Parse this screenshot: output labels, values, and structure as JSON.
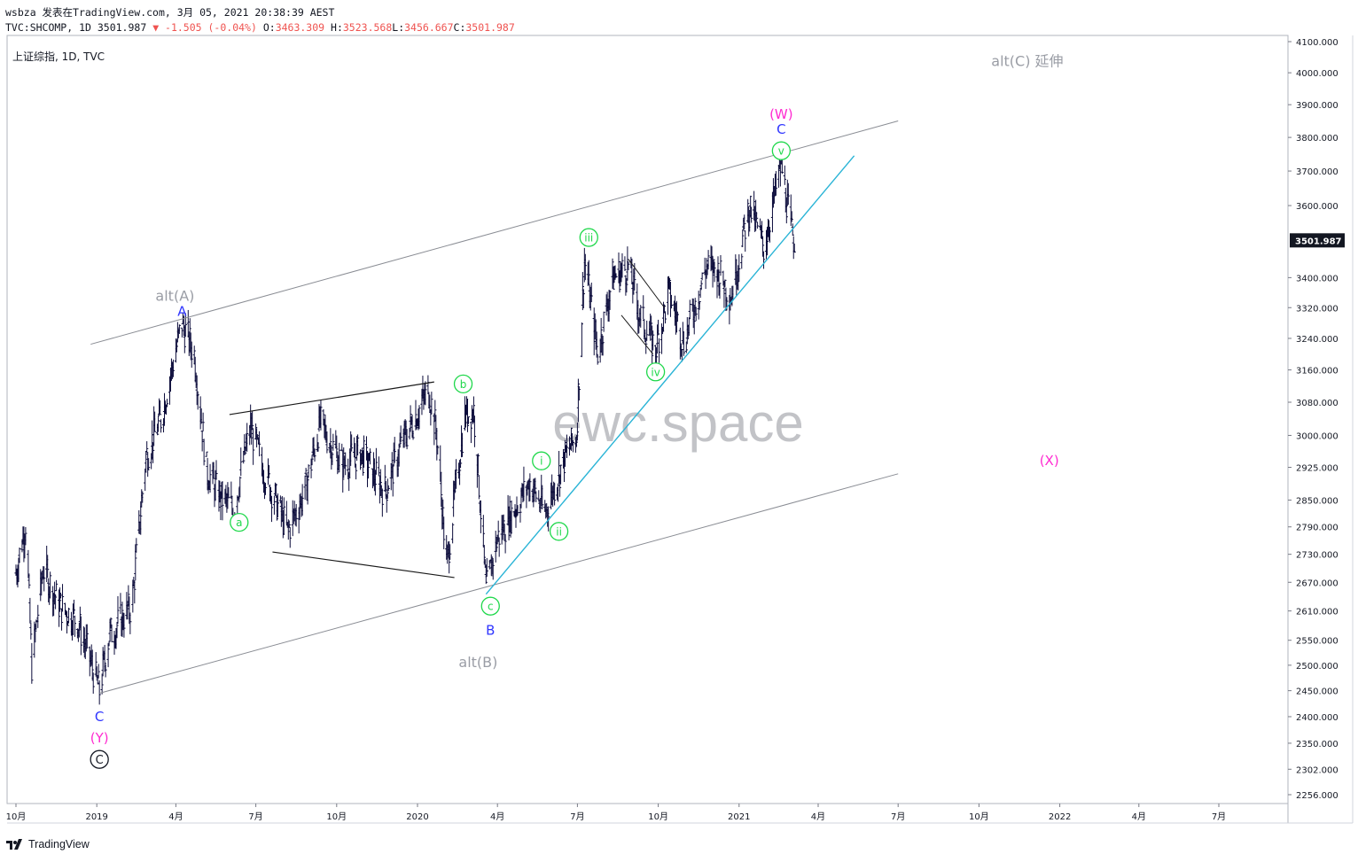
{
  "header": {
    "line1": "wsbza 发表在TradingView.com, 3月 05, 2021 20:38:39 AEST",
    "line2_prefix": "TVC:SHCOMP, 1D 3501.987",
    "line2_change": "▼ -1.505 (-0.04%)",
    "ohlc": {
      "o_label": "O:",
      "o": "3463.309",
      "h_label": "H:",
      "h": "3523.568",
      "l_label": "L:",
      "l": "3456.667",
      "c_label": "C:",
      "c": "3501.987"
    }
  },
  "symbol_label": "上证综指, 1D, TVC",
  "watermark": "ewc.space",
  "brand": "TradingView",
  "colors": {
    "green": "#1fd84b",
    "blue": "#2f35ff",
    "magenta": "#ff2bd1",
    "gray": "#9a9da5",
    "cyan": "#2ab4d6",
    "down": "#ef5350"
  },
  "chart_data": {
    "type": "bar",
    "price_axis": {
      "ticks": [
        "4100.000",
        "4000.000",
        "3900.000",
        "3800.000",
        "3700.000",
        "3600.000",
        "3400.000",
        "3320.000",
        "3240.000",
        "3160.000",
        "3080.000",
        "3000.000",
        "2925.000",
        "2850.000",
        "2790.000",
        "2730.000",
        "2670.000",
        "2610.000",
        "2550.000",
        "2500.000",
        "2450.000",
        "2400.000",
        "2350.000",
        "2302.000",
        "2256.000"
      ],
      "last_price": "3501.987",
      "scale": "log"
    },
    "time_axis": {
      "ticks": [
        "10月",
        "2019",
        "4月",
        "7月",
        "10月",
        "2020",
        "4月",
        "7月",
        "10月",
        "2021",
        "4月",
        "7月",
        "10月",
        "2022",
        "4月",
        "7月"
      ]
    },
    "price_path": [
      [
        "2018-10-01",
        2690
      ],
      [
        "2018-10-12",
        2800
      ],
      [
        "2018-10-19",
        2500
      ],
      [
        "2018-11-01",
        2700
      ],
      [
        "2018-11-20",
        2620
      ],
      [
        "2018-12-10",
        2590
      ],
      [
        "2019-01-04",
        2450
      ],
      [
        "2019-01-15",
        2560
      ],
      [
        "2019-02-10",
        2620
      ],
      [
        "2019-02-26",
        2950
      ],
      [
        "2019-03-15",
        3040
      ],
      [
        "2019-04-08",
        3280
      ],
      [
        "2019-04-22",
        3200
      ],
      [
        "2019-05-06",
        2920
      ],
      [
        "2019-05-20",
        2860
      ],
      [
        "2019-06-06",
        2830
      ],
      [
        "2019-06-25",
        3020
      ],
      [
        "2019-07-08",
        2930
      ],
      [
        "2019-08-06",
        2780
      ],
      [
        "2019-08-26",
        2870
      ],
      [
        "2019-09-12",
        3030
      ],
      [
        "2019-10-08",
        2930
      ],
      [
        "2019-10-28",
        2960
      ],
      [
        "2019-11-25",
        2870
      ],
      [
        "2019-12-16",
        2990
      ],
      [
        "2020-01-14",
        3110
      ],
      [
        "2020-01-23",
        3000
      ],
      [
        "2020-02-03",
        2700
      ],
      [
        "2020-02-24",
        3050
      ],
      [
        "2020-03-05",
        3060
      ],
      [
        "2020-03-19",
        2650
      ],
      [
        "2020-03-31",
        2760
      ],
      [
        "2020-04-20",
        2830
      ],
      [
        "2020-05-08",
        2890
      ],
      [
        "2020-05-25",
        2820
      ],
      [
        "2020-06-15",
        2940
      ],
      [
        "2020-06-30",
        3000
      ],
      [
        "2020-07-09",
        3450
      ],
      [
        "2020-07-24",
        3200
      ],
      [
        "2020-08-10",
        3400
      ],
      [
        "2020-08-28",
        3430
      ],
      [
        "2020-09-10",
        3300
      ],
      [
        "2020-09-28",
        3210
      ],
      [
        "2020-10-13",
        3360
      ],
      [
        "2020-10-30",
        3230
      ],
      [
        "2020-11-25",
        3430
      ],
      [
        "2020-12-07",
        3420
      ],
      [
        "2020-12-23",
        3350
      ],
      [
        "2021-01-13",
        3600
      ],
      [
        "2021-01-29",
        3480
      ],
      [
        "2021-02-18",
        3720
      ],
      [
        "2021-03-01",
        3530
      ],
      [
        "2021-03-05",
        3502
      ]
    ],
    "trendlines": [
      {
        "name": "channel-upper",
        "from": [
          "2018-12-25",
          3225
        ],
        "to": [
          "2021-07-01",
          3850
        ]
      },
      {
        "name": "channel-lower",
        "from": [
          "2019-01-04",
          2445
        ],
        "to": [
          "2021-07-01",
          2910
        ]
      },
      {
        "name": "triangle-upper",
        "from": [
          "2019-06-01",
          3050
        ],
        "to": [
          "2020-01-20",
          3130
        ]
      },
      {
        "name": "triangle-lower",
        "from": [
          "2019-07-20",
          2735
        ],
        "to": [
          "2020-02-12",
          2680
        ]
      },
      {
        "name": "support-cyan",
        "from": [
          "2020-03-19",
          2645
        ],
        "to": [
          "2021-05-12",
          3745
        ]
      },
      {
        "name": "wave-iv-upper",
        "from": [
          "2020-08-28",
          3450
        ],
        "to": [
          "2020-10-08",
          3320
        ]
      },
      {
        "name": "wave-iv-lower",
        "from": [
          "2020-08-20",
          3300
        ],
        "to": [
          "2020-09-25",
          3200
        ]
      }
    ],
    "wave_labels": [
      {
        "text": "alt(A)",
        "style": "gray",
        "at": [
          "2019-03-31",
          3350
        ]
      },
      {
        "text": "A",
        "style": "blue",
        "at": [
          "2019-04-08",
          3310
        ]
      },
      {
        "text": "a",
        "style": "green-circle",
        "at": [
          "2019-06-12",
          2800
        ]
      },
      {
        "text": "b",
        "style": "green-circle",
        "at": [
          "2020-02-22",
          3125
        ]
      },
      {
        "text": "c",
        "style": "green-circle",
        "at": [
          "2020-03-24",
          2620
        ]
      },
      {
        "text": "B",
        "style": "blue",
        "at": [
          "2020-03-24",
          2570
        ]
      },
      {
        "text": "alt(B)",
        "style": "gray",
        "at": [
          "2020-03-10",
          2505
        ]
      },
      {
        "text": "i",
        "style": "green-circle",
        "at": [
          "2020-05-21",
          2940
        ]
      },
      {
        "text": "ii",
        "style": "green-circle",
        "at": [
          "2020-06-10",
          2780
        ]
      },
      {
        "text": "iii",
        "style": "green-circle",
        "at": [
          "2020-07-14",
          3510
        ]
      },
      {
        "text": "iv",
        "style": "green-circle",
        "at": [
          "2020-09-28",
          3155
        ]
      },
      {
        "text": "v",
        "style": "green-circle",
        "at": [
          "2021-02-18",
          3760
        ]
      },
      {
        "text": "C",
        "style": "blue",
        "at": [
          "2021-02-18",
          3825
        ]
      },
      {
        "text": "(W)",
        "style": "magenta",
        "at": [
          "2021-02-18",
          3870
        ]
      },
      {
        "text": "alt(C) 延伸",
        "style": "gray",
        "at": [
          "2021-11-25",
          4035
        ]
      },
      {
        "text": "(X)",
        "style": "magenta",
        "at": [
          "2021-12-20",
          2940
        ]
      },
      {
        "text": "C",
        "style": "blue",
        "at": [
          "2019-01-04",
          2400
        ]
      },
      {
        "text": "(Y)",
        "style": "magenta",
        "at": [
          "2019-01-04",
          2360
        ]
      },
      {
        "text": "C",
        "style": "black-circle",
        "at": [
          "2019-01-04",
          2320
        ]
      }
    ]
  }
}
